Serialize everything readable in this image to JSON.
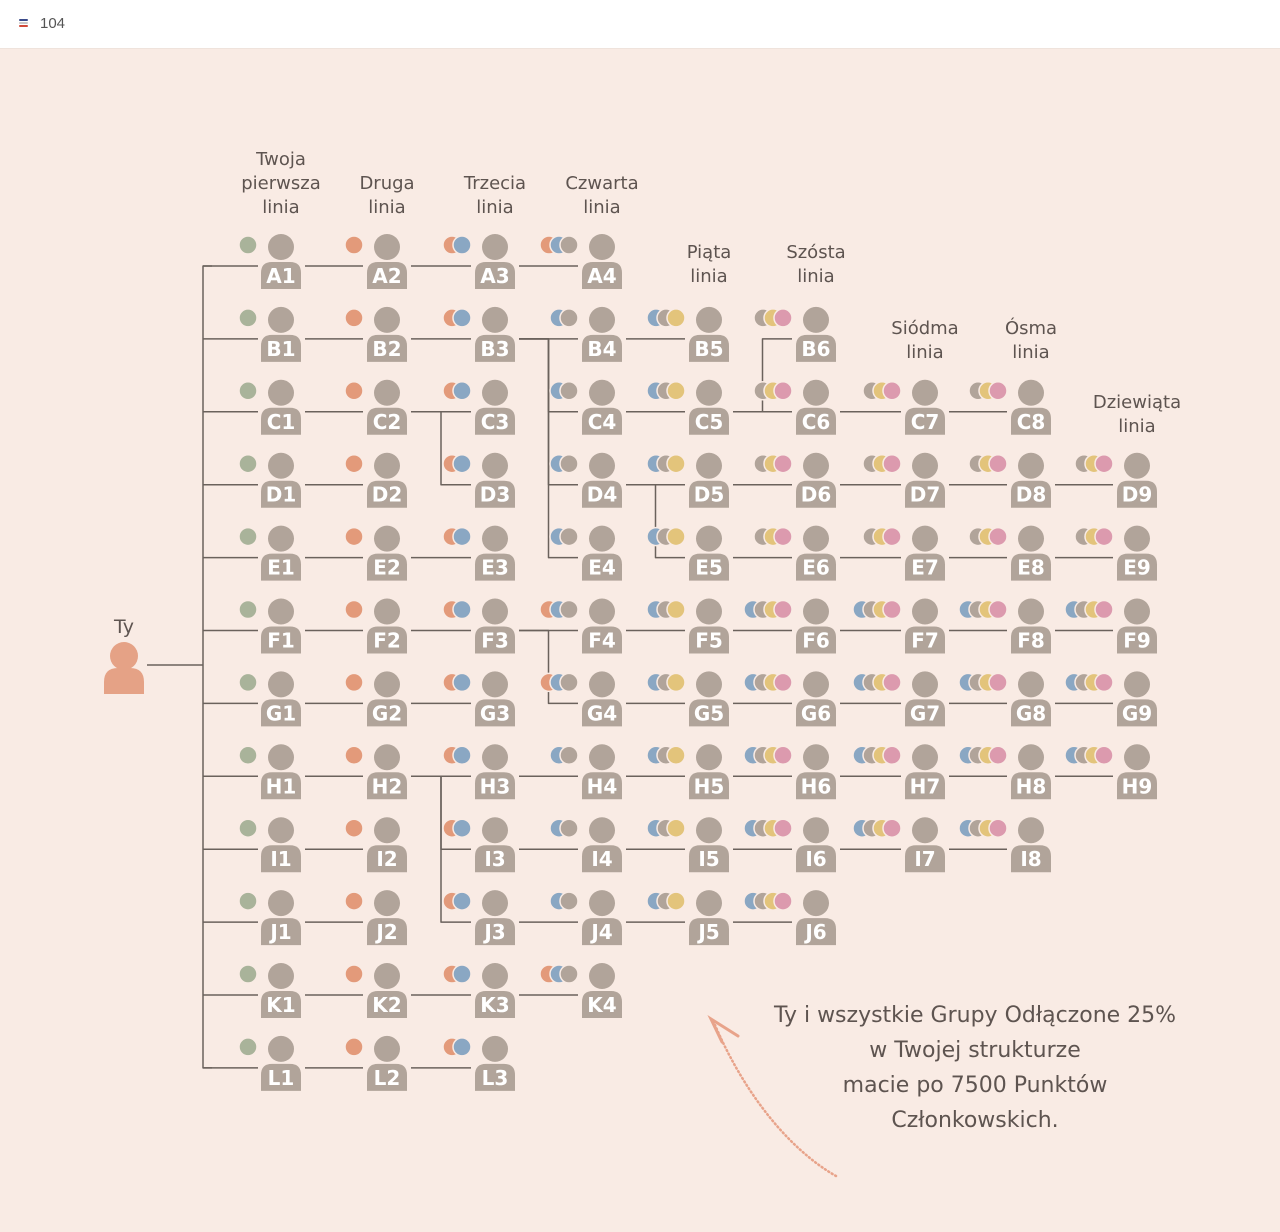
{
  "header": {
    "page_number": "104"
  },
  "colors": {
    "person": "#b1a49a",
    "you": "#e5a286",
    "line": "#6b625c",
    "dot_palette": [
      "#a9b39a",
      "#e39a7a",
      "#8aa7c3",
      "#b1a49a",
      "#e3c47b",
      "#dc9aae"
    ]
  },
  "you_label": "Ty",
  "line_headers": [
    {
      "lines": [
        "Twoja",
        "pierwsza",
        "linia"
      ]
    },
    {
      "lines": [
        "Druga",
        "linia"
      ]
    },
    {
      "lines": [
        "Trzecia",
        "linia"
      ]
    },
    {
      "lines": [
        "Czwarta",
        "linia"
      ]
    },
    {
      "lines": [
        "Piąta",
        "linia"
      ]
    },
    {
      "lines": [
        "Szósta",
        "linia"
      ]
    },
    {
      "lines": [
        "Siódma",
        "linia"
      ]
    },
    {
      "lines": [
        "Ósma",
        "linia"
      ]
    },
    {
      "lines": [
        "Dziewiąta",
        "linia"
      ]
    }
  ],
  "rows": [
    {
      "letter": "A",
      "levels": 4
    },
    {
      "letter": "B",
      "levels": 6
    },
    {
      "letter": "C",
      "levels": 8
    },
    {
      "letter": "D",
      "levels": 9
    },
    {
      "letter": "E",
      "levels": 9
    },
    {
      "letter": "F",
      "levels": 9
    },
    {
      "letter": "G",
      "levels": 9
    },
    {
      "letter": "H",
      "levels": 9
    },
    {
      "letter": "I",
      "levels": 8
    },
    {
      "letter": "J",
      "levels": 6
    },
    {
      "letter": "K",
      "levels": 4
    },
    {
      "letter": "L",
      "levels": 3
    }
  ],
  "dots": {
    "A1": [
      "g"
    ],
    "A2": [
      "o"
    ],
    "A3": [
      "o",
      "b"
    ],
    "A4": [
      "o",
      "b",
      "t"
    ],
    "B1": [
      "g"
    ],
    "B2": [
      "o"
    ],
    "B3": [
      "o",
      "b"
    ],
    "B4": [
      "b",
      "t"
    ],
    "B5": [
      "b",
      "t",
      "y"
    ],
    "B6": [
      "t",
      "y",
      "p"
    ],
    "C1": [
      "g"
    ],
    "C2": [
      "o"
    ],
    "C3": [
      "o",
      "b"
    ],
    "C4": [
      "b",
      "t"
    ],
    "C5": [
      "b",
      "t",
      "y"
    ],
    "C6": [
      "t",
      "y",
      "p"
    ],
    "C7": [
      "t",
      "y",
      "p"
    ],
    "C8": [
      "t",
      "y",
      "p"
    ],
    "D1": [
      "g"
    ],
    "D2": [
      "o"
    ],
    "D3": [
      "o",
      "b"
    ],
    "D4": [
      "b",
      "t"
    ],
    "D5": [
      "b",
      "t",
      "y"
    ],
    "D6": [
      "t",
      "y",
      "p"
    ],
    "D7": [
      "t",
      "y",
      "p"
    ],
    "D8": [
      "t",
      "y",
      "p"
    ],
    "D9": [
      "t",
      "y",
      "p"
    ],
    "E1": [
      "g"
    ],
    "E2": [
      "o"
    ],
    "E3": [
      "o",
      "b"
    ],
    "E4": [
      "b",
      "t"
    ],
    "E5": [
      "b",
      "t",
      "y"
    ],
    "E6": [
      "t",
      "y",
      "p"
    ],
    "E7": [
      "t",
      "y",
      "p"
    ],
    "E8": [
      "t",
      "y",
      "p"
    ],
    "E9": [
      "t",
      "y",
      "p"
    ],
    "F1": [
      "g"
    ],
    "F2": [
      "o"
    ],
    "F3": [
      "o",
      "b"
    ],
    "F4": [
      "o",
      "b",
      "t"
    ],
    "F5": [
      "b",
      "t",
      "y"
    ],
    "F6": [
      "b",
      "t",
      "y",
      "p"
    ],
    "F7": [
      "b",
      "t",
      "y",
      "p"
    ],
    "F8": [
      "b",
      "t",
      "y",
      "p"
    ],
    "F9": [
      "b",
      "t",
      "y",
      "p"
    ],
    "G1": [
      "g"
    ],
    "G2": [
      "o"
    ],
    "G3": [
      "o",
      "b"
    ],
    "G4": [
      "o",
      "b",
      "t"
    ],
    "G5": [
      "b",
      "t",
      "y"
    ],
    "G6": [
      "b",
      "t",
      "y",
      "p"
    ],
    "G7": [
      "b",
      "t",
      "y",
      "p"
    ],
    "G8": [
      "b",
      "t",
      "y",
      "p"
    ],
    "G9": [
      "b",
      "t",
      "y",
      "p"
    ],
    "H1": [
      "g"
    ],
    "H2": [
      "o"
    ],
    "H3": [
      "o",
      "b"
    ],
    "H4": [
      "b",
      "t"
    ],
    "H5": [
      "b",
      "t",
      "y"
    ],
    "H6": [
      "b",
      "t",
      "y",
      "p"
    ],
    "H7": [
      "b",
      "t",
      "y",
      "p"
    ],
    "H8": [
      "b",
      "t",
      "y",
      "p"
    ],
    "H9": [
      "b",
      "t",
      "y",
      "p"
    ],
    "I1": [
      "g"
    ],
    "I2": [
      "o"
    ],
    "I3": [
      "o",
      "b"
    ],
    "I4": [
      "b",
      "t"
    ],
    "I5": [
      "b",
      "t",
      "y"
    ],
    "I6": [
      "b",
      "t",
      "y",
      "p"
    ],
    "I7": [
      "b",
      "t",
      "y",
      "p"
    ],
    "I8": [
      "b",
      "t",
      "y",
      "p"
    ],
    "J1": [
      "g"
    ],
    "J2": [
      "o"
    ],
    "J3": [
      "o",
      "b"
    ],
    "J4": [
      "b",
      "t"
    ],
    "J5": [
      "b",
      "t",
      "y"
    ],
    "J6": [
      "b",
      "t",
      "y",
      "p"
    ],
    "K1": [
      "g"
    ],
    "K2": [
      "o"
    ],
    "K3": [
      "o",
      "b"
    ],
    "K4": [
      "o",
      "b",
      "t"
    ],
    "L1": [
      "g"
    ],
    "L2": [
      "o"
    ],
    "L3": [
      "o",
      "b"
    ]
  },
  "dot_colors": {
    "g": "#a9b39a",
    "o": "#e39a7a",
    "b": "#8aa7c3",
    "t": "#b1a49a",
    "y": "#e3c47b",
    "p": "#dc9aae"
  },
  "connections": [
    [
      "B3",
      "B4"
    ],
    [
      "B3",
      "C4"
    ],
    [
      "B3",
      "D4"
    ],
    [
      "B3",
      "E4"
    ],
    [
      "C2",
      "C3"
    ],
    [
      "C2",
      "D3"
    ],
    [
      "C5",
      "B6"
    ],
    [
      "C5",
      "C6"
    ],
    [
      "D4",
      "D5"
    ],
    [
      "D4",
      "E5"
    ],
    [
      "F3",
      "F4"
    ],
    [
      "F3",
      "G4"
    ],
    [
      "H2",
      "H3"
    ],
    [
      "H2",
      "I3"
    ],
    [
      "H2",
      "J3"
    ]
  ],
  "caption": {
    "lines": [
      "Ty i wszystkie Grupy Odłączone 25%",
      "w Twojej strukturze",
      "macie po 7500 Punktów",
      "Członkowskich."
    ]
  }
}
